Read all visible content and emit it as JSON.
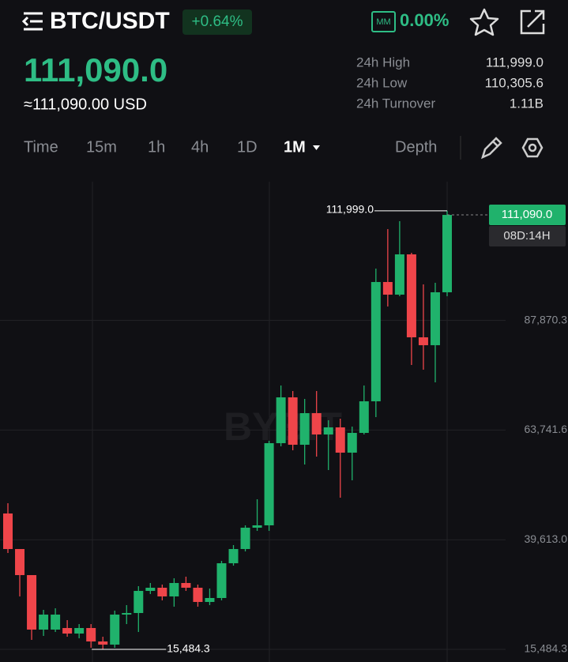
{
  "header": {
    "pair": "BTC/USDT",
    "change": "+0.64%",
    "mm_rate": "0.00%"
  },
  "price": {
    "last": "111,090.0",
    "usd": "≈111,090.00 USD"
  },
  "stats": [
    {
      "label": "24h High",
      "value": "111,999.0"
    },
    {
      "label": "24h Low",
      "value": "110,305.6"
    },
    {
      "label": "24h Turnover",
      "value": "1.11B"
    }
  ],
  "timeframes": [
    "Time",
    "15m",
    "1h",
    "4h",
    "1D",
    "1M"
  ],
  "depth": "Depth",
  "chart_data": {
    "type": "candlestick",
    "watermark": "BYBIT",
    "colors": {
      "up": "#20b26c",
      "down": "#ef454a"
    },
    "categories": [
      null,
      null,
      null,
      null,
      null,
      null,
      null,
      null,
      null,
      null,
      null,
      null,
      null,
      null,
      null,
      null,
      null,
      null,
      null,
      null,
      null,
      null,
      null,
      null,
      null,
      null,
      null,
      null,
      null,
      null,
      null,
      null,
      null,
      null,
      null,
      null,
      null,
      null
    ],
    "open": [
      45384,
      37562,
      31825,
      19831,
      19831,
      20178,
      18961,
      20178,
      17223,
      16527,
      23134,
      23481,
      28348,
      29044,
      27132,
      30087,
      29044,
      25915,
      26784,
      34433,
      37562,
      42256,
      42777,
      60858,
      70942,
      60511,
      67465,
      62771,
      64336,
      58772,
      63119,
      70073,
      96325,
      93543,
      102409,
      84155,
      82417,
      94065
    ],
    "high": [
      47645,
      37562,
      31825,
      24176,
      24524,
      21917,
      21047,
      21047,
      18266,
      24003,
      25220,
      29391,
      30087,
      29739,
      31130,
      31477,
      29739,
      28870,
      34955,
      38431,
      42777,
      48515,
      61380,
      73550,
      72333,
      70595,
      72333,
      65901,
      66248,
      64510,
      73550,
      99280,
      107972,
      109711,
      102757,
      95803,
      96151,
      111999
    ],
    "low": [
      36693,
      27132,
      17570,
      18439,
      19309,
      18266,
      17918,
      15832,
      15484.3,
      15832,
      21047,
      19309,
      27653,
      26263,
      24872,
      28348,
      24872,
      25220,
      26263,
      33911,
      37040,
      41560,
      41560,
      60163,
      59294,
      56164,
      57903,
      54947,
      48862,
      52687,
      62771,
      66596,
      90935,
      93195,
      78070,
      77027,
      74245,
      93195
    ],
    "close": [
      37562,
      31825,
      19831,
      23134,
      23134,
      18961,
      20178,
      17223,
      16527,
      23134,
      23481,
      28348,
      29044,
      27132,
      30087,
      29044,
      25915,
      26784,
      34433,
      37562,
      42256,
      42777,
      60858,
      70942,
      60511,
      67465,
      62771,
      64336,
      58772,
      63119,
      70073,
      96325,
      93543,
      102409,
      84155,
      82417,
      94065,
      111090
    ],
    "ylim": [
      12700,
      118400
    ],
    "yticks": [
      {
        "value": 15484.3,
        "label": "15,484.3"
      },
      {
        "value": 39613.0,
        "label": "39,613.0"
      },
      {
        "value": 63741.6,
        "label": "63,741.6"
      },
      {
        "value": 87870.3,
        "label": "87,870.3"
      }
    ],
    "max_label": {
      "value": 111999,
      "label": "111,999.0"
    },
    "min_label": {
      "value": 15484.3,
      "label": "15,484.3"
    },
    "last_price": {
      "value": 111090,
      "label": "111,090.0"
    },
    "countdown": "08D:14H"
  }
}
